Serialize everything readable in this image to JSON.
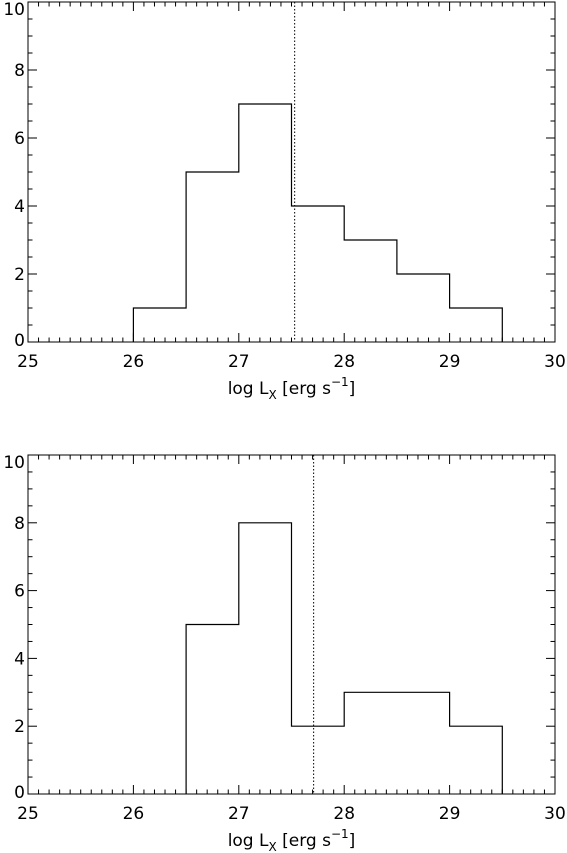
{
  "chart_data": [
    {
      "type": "histogram",
      "xlabel": {
        "base": "log L",
        "sub": "X",
        "unit_prefix": " [erg s",
        "sup": "−1",
        "unit_suffix": "]"
      },
      "ylabel": "",
      "xlim": [
        25,
        30
      ],
      "ylim": [
        0,
        10
      ],
      "xticks": [
        25,
        26,
        27,
        28,
        29,
        30
      ],
      "yticks": [
        0,
        2,
        4,
        6,
        8,
        10
      ],
      "xminor": 0.1,
      "yminor": 0.5,
      "bin_edges": [
        26.0,
        26.5,
        27.0,
        27.5,
        28.0,
        28.5,
        29.0,
        29.5
      ],
      "values": [
        1,
        5,
        7,
        4,
        3,
        2,
        1
      ],
      "reference_line": {
        "x": 27.53,
        "style": "dotted"
      },
      "grid": false
    },
    {
      "type": "histogram",
      "xlabel": {
        "base": "log L",
        "sub": "X",
        "unit_prefix": " [erg s",
        "sup": "−1",
        "unit_suffix": "]"
      },
      "ylabel": "",
      "xlim": [
        25,
        30
      ],
      "ylim": [
        0,
        10
      ],
      "xticks": [
        25,
        26,
        27,
        28,
        29,
        30
      ],
      "yticks": [
        0,
        2,
        4,
        6,
        8,
        10
      ],
      "xminor": 0.1,
      "yminor": 0.5,
      "bin_edges": [
        26.5,
        27.0,
        27.5,
        28.0,
        28.5,
        29.0,
        29.5
      ],
      "values": [
        5,
        8,
        2,
        3,
        3,
        2
      ],
      "reference_line": {
        "x": 27.71,
        "style": "dotted"
      },
      "grid": false
    }
  ]
}
